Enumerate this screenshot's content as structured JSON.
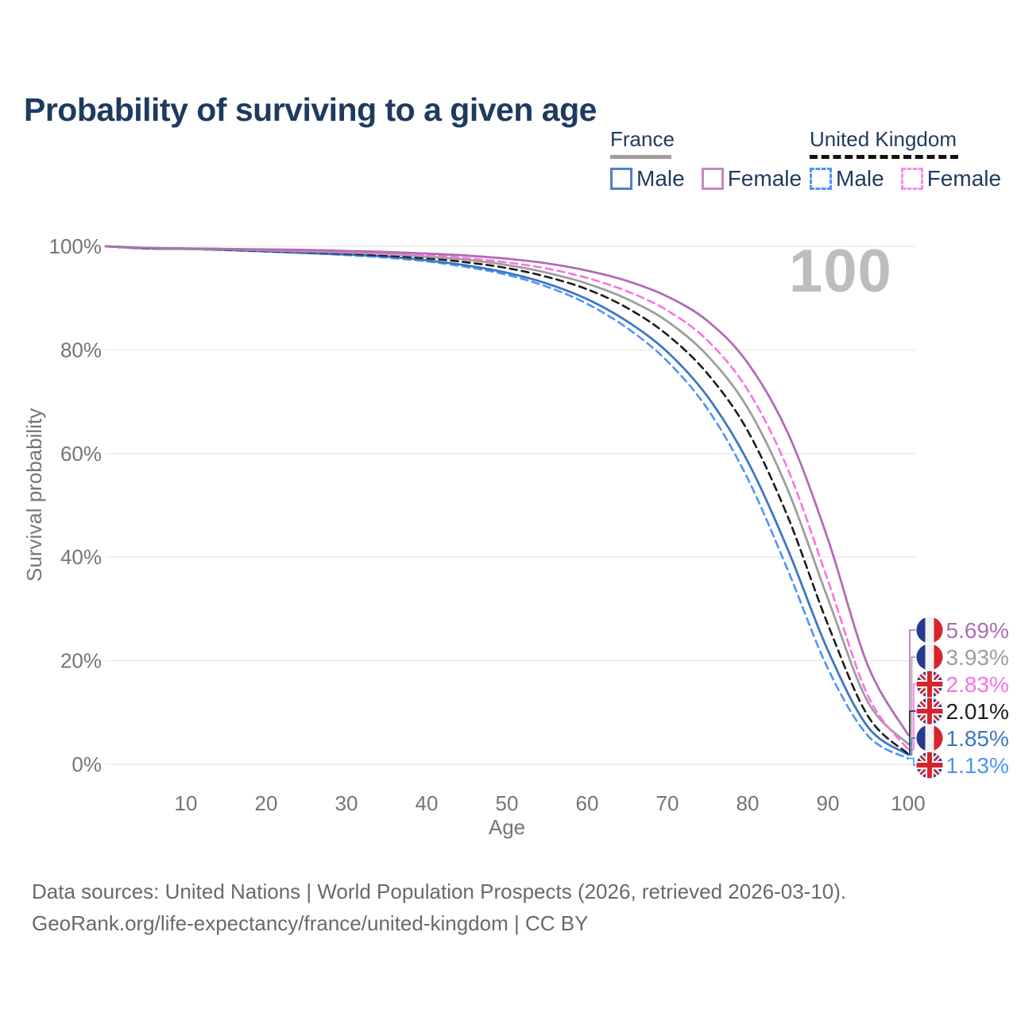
{
  "title": "Probability of surviving to a given age",
  "watermark": "100",
  "legend": {
    "position": "top-right",
    "groups": [
      {
        "id": "france",
        "label": "France",
        "underline_style": "solid",
        "underline_color": "#9e9e9e",
        "items": [
          {
            "id": "france-male",
            "label": "Male",
            "swatch_color": "#4f81c7",
            "swatch_style": "solid"
          },
          {
            "id": "france-female",
            "label": "Female",
            "swatch_color": "#c588c2",
            "swatch_style": "solid"
          }
        ]
      },
      {
        "id": "uk",
        "label": "United Kingdom",
        "underline_style": "dashed",
        "underline_color": "#111111",
        "items": [
          {
            "id": "uk-male",
            "label": "Male",
            "swatch_color": "#4f93f2",
            "swatch_style": "dashed"
          },
          {
            "id": "uk-female",
            "label": "Female",
            "swatch_color": "#fb8ce9",
            "swatch_style": "dashed"
          }
        ]
      }
    ]
  },
  "chart_data": {
    "type": "line",
    "title": "Probability of surviving to a given age",
    "xlabel": "Age",
    "ylabel": "Survival probability",
    "xlim": [
      0,
      100
    ],
    "ylim": [
      0,
      100
    ],
    "grid": "horizontal",
    "legend_position": "top-right",
    "highlighted_age": "100",
    "x_ticks": [
      10,
      20,
      30,
      40,
      50,
      60,
      70,
      80,
      90,
      100
    ],
    "y_ticks": [
      {
        "value": 100,
        "label": "100%"
      },
      {
        "value": 80,
        "label": "80%"
      },
      {
        "value": 60,
        "label": "60%"
      },
      {
        "value": 40,
        "label": "40%"
      },
      {
        "value": 20,
        "label": "20%"
      },
      {
        "value": 0,
        "label": "0%"
      }
    ],
    "ages": [
      0,
      5,
      10,
      15,
      20,
      25,
      30,
      35,
      40,
      45,
      50,
      55,
      60,
      65,
      70,
      75,
      80,
      85,
      90,
      95,
      100
    ],
    "series": [
      {
        "id": "france-female",
        "name": "France Female",
        "country": "france",
        "sex": "female",
        "color": "#b06db3",
        "dash": "solid",
        "end_label": "5.69%",
        "label_row": 0,
        "values": [
          100,
          99.7,
          99.6,
          99.5,
          99.4,
          99.3,
          99.1,
          98.9,
          98.6,
          98.2,
          97.6,
          96.7,
          95.3,
          93.3,
          90.3,
          85.6,
          77.5,
          64.0,
          43.5,
          19.0,
          5.69
        ]
      },
      {
        "id": "france-total",
        "name": "France (both sexes)",
        "country": "france",
        "sex": "total",
        "color": "#9e9e9e",
        "dash": "solid",
        "end_label": "3.93%",
        "label_row": 1,
        "values": [
          100,
          99.7,
          99.5,
          99.4,
          99.2,
          99.0,
          98.8,
          98.5,
          98.0,
          97.4,
          96.4,
          94.9,
          92.8,
          89.8,
          85.5,
          78.9,
          68.8,
          53.0,
          32.0,
          12.0,
          3.93
        ]
      },
      {
        "id": "uk-female",
        "name": "United Kingdom Female",
        "country": "uk",
        "sex": "female",
        "color": "#fb71e4",
        "dash": "dashed",
        "end_label": "2.83%",
        "label_row": 2,
        "values": [
          100,
          99.7,
          99.6,
          99.5,
          99.3,
          99.1,
          98.9,
          98.6,
          98.3,
          97.7,
          96.9,
          95.7,
          93.9,
          91.3,
          87.6,
          81.8,
          72.3,
          57.0,
          35.5,
          13.2,
          2.83
        ]
      },
      {
        "id": "uk-total",
        "name": "United Kingdom (both sexes)",
        "country": "uk",
        "sex": "total",
        "color": "#1c1c1c",
        "dash": "dashed",
        "end_label": "2.01%",
        "label_row": 3,
        "values": [
          100,
          99.6,
          99.5,
          99.3,
          99.1,
          98.9,
          98.6,
          98.2,
          97.7,
          96.9,
          95.8,
          94.1,
          91.7,
          88.1,
          82.9,
          75.4,
          64.4,
          47.8,
          27.0,
          9.3,
          2.01
        ]
      },
      {
        "id": "france-male",
        "name": "France Male",
        "country": "france",
        "sex": "male",
        "color": "#3d76c4",
        "dash": "solid",
        "end_label": "1.85%",
        "label_row": 4,
        "values": [
          100,
          99.6,
          99.5,
          99.3,
          99.0,
          98.7,
          98.4,
          98.0,
          97.3,
          96.3,
          94.9,
          92.8,
          89.8,
          85.5,
          79.6,
          71.0,
          58.5,
          41.5,
          22.0,
          7.2,
          1.85
        ]
      },
      {
        "id": "uk-male",
        "name": "United Kingdom Male",
        "country": "uk",
        "sex": "male",
        "color": "#4f94f6",
        "dash": "dashed",
        "end_label": "1.13%",
        "label_row": 5,
        "values": [
          100,
          99.6,
          99.5,
          99.3,
          99.0,
          98.7,
          98.3,
          97.8,
          97.1,
          96.0,
          94.5,
          92.2,
          88.9,
          84.2,
          77.8,
          68.6,
          55.2,
          37.5,
          18.5,
          5.5,
          1.13
        ]
      }
    ]
  },
  "footer": {
    "line1": "Data sources: United Nations | World Population Prospects (2026, retrieved 2026-03-10).",
    "line2": "GeoRank.org/life-expectancy/france/united-kingdom | CC BY"
  }
}
